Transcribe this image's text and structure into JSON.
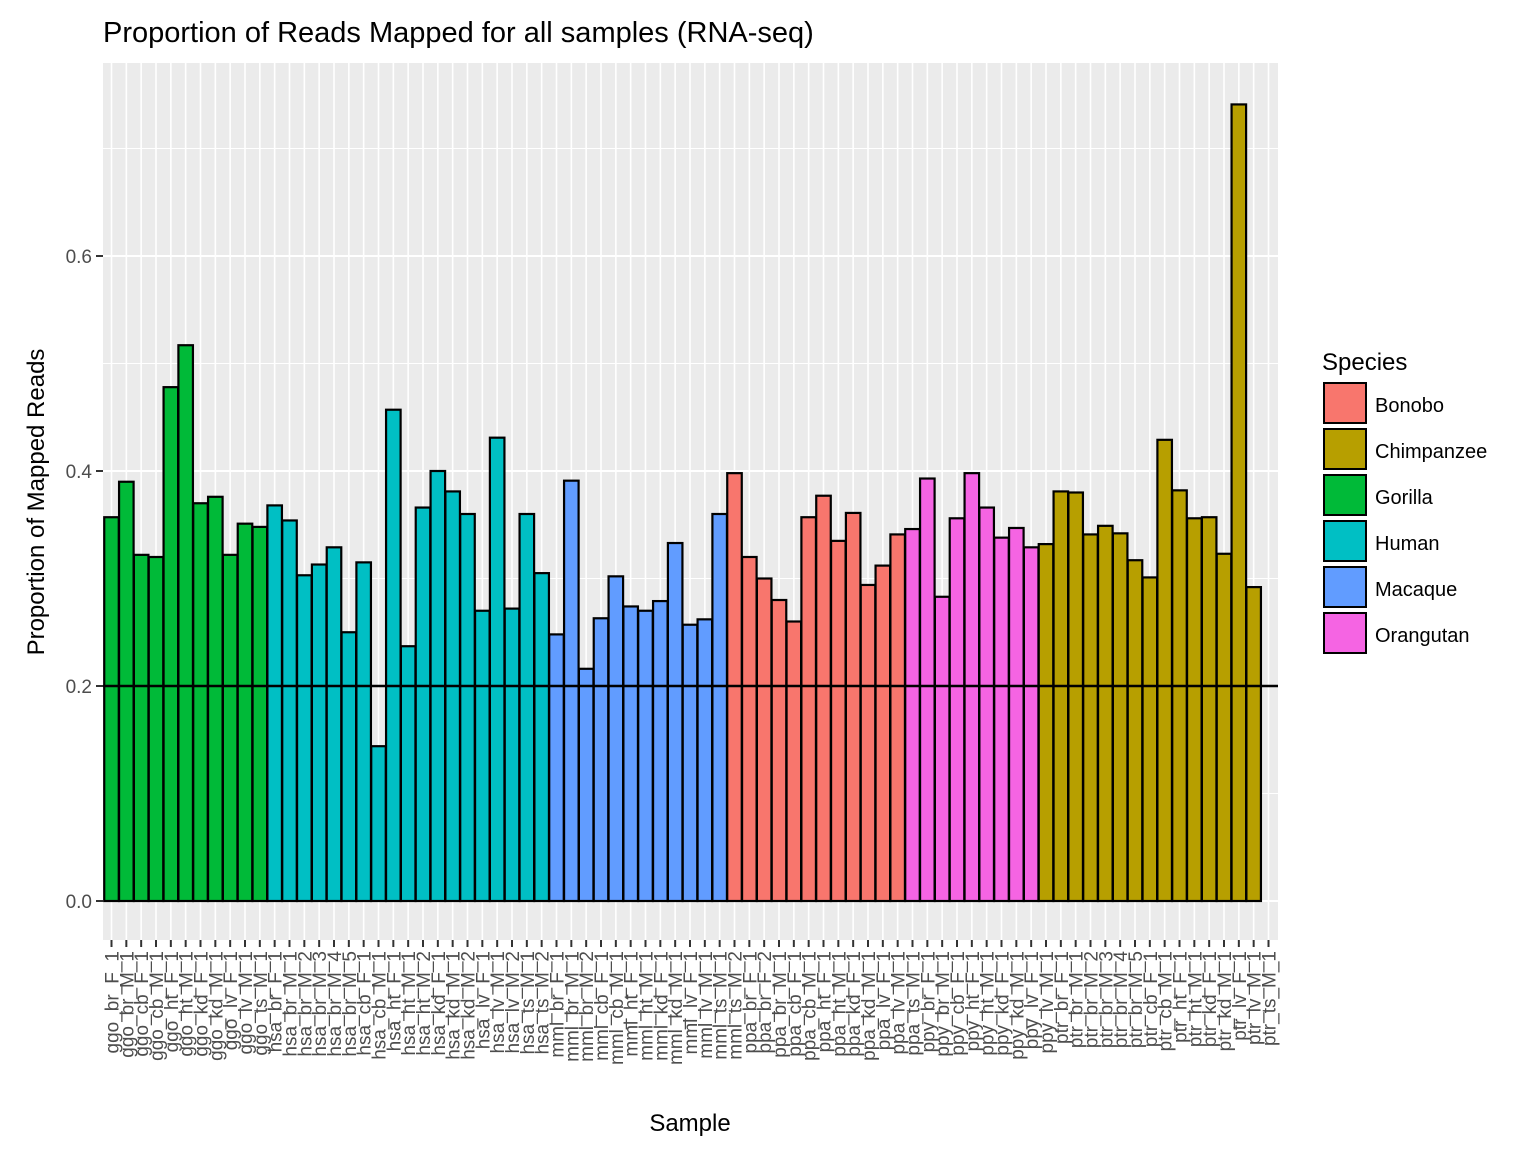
{
  "chart_data": {
    "type": "bar",
    "title": "Proportion of Reads Mapped for all samples (RNA-seq)",
    "xlabel": "Sample",
    "ylabel": "Proportion of Mapped Reads",
    "ylim": [
      -0.05,
      0.76
    ],
    "yticks": [
      0.0,
      0.2,
      0.4,
      0.6
    ],
    "ytick_labels": [
      "0.0",
      "0.2",
      "0.4",
      "0.6"
    ],
    "reference_line": 0.2,
    "grid": true,
    "legend": {
      "title": "Species",
      "placement": "right",
      "entries": [
        "Bonobo",
        "Chimpanzee",
        "Gorilla",
        "Human",
        "Macaque",
        "Orangutan"
      ]
    },
    "species_colors": {
      "Bonobo": "#F8766D",
      "Chimpanzee": "#B79F00",
      "Gorilla": "#00BA38",
      "Human": "#00BFC4",
      "Macaque": "#619CFF",
      "Orangutan": "#F564E3"
    },
    "bars": [
      {
        "sample": "ggo_br_F_1",
        "species": "Gorilla",
        "value": 0.357
      },
      {
        "sample": "ggo_br_M_1",
        "species": "Gorilla",
        "value": 0.39
      },
      {
        "sample": "ggo_cb_F_1",
        "species": "Gorilla",
        "value": 0.322
      },
      {
        "sample": "ggo_cb_M_1",
        "species": "Gorilla",
        "value": 0.32
      },
      {
        "sample": "ggo_ht_F_1",
        "species": "Gorilla",
        "value": 0.478
      },
      {
        "sample": "ggo_ht_M_1",
        "species": "Gorilla",
        "value": 0.517
      },
      {
        "sample": "ggo_kd_F_1",
        "species": "Gorilla",
        "value": 0.37
      },
      {
        "sample": "ggo_kd_M_1",
        "species": "Gorilla",
        "value": 0.376
      },
      {
        "sample": "ggo_lv_F_1",
        "species": "Gorilla",
        "value": 0.322
      },
      {
        "sample": "ggo_lv_M_1",
        "species": "Gorilla",
        "value": 0.351
      },
      {
        "sample": "ggo_ts_M_1",
        "species": "Gorilla",
        "value": 0.348
      },
      {
        "sample": "hsa_br_F_1",
        "species": "Human",
        "value": 0.368
      },
      {
        "sample": "hsa_br_M_1",
        "species": "Human",
        "value": 0.354
      },
      {
        "sample": "hsa_br_M_2",
        "species": "Human",
        "value": 0.303
      },
      {
        "sample": "hsa_br_M_3",
        "species": "Human",
        "value": 0.313
      },
      {
        "sample": "hsa_br_M_4",
        "species": "Human",
        "value": 0.329
      },
      {
        "sample": "hsa_br_M_5",
        "species": "Human",
        "value": 0.25
      },
      {
        "sample": "hsa_cb_F_1",
        "species": "Human",
        "value": 0.315
      },
      {
        "sample": "hsa_cb_M_1",
        "species": "Human",
        "value": 0.144
      },
      {
        "sample": "hsa_ht_F_1",
        "species": "Human",
        "value": 0.457
      },
      {
        "sample": "hsa_ht_M_1",
        "species": "Human",
        "value": 0.237
      },
      {
        "sample": "hsa_ht_M_2",
        "species": "Human",
        "value": 0.366
      },
      {
        "sample": "hsa_kd_F_1",
        "species": "Human",
        "value": 0.4
      },
      {
        "sample": "hsa_kd_M_1",
        "species": "Human",
        "value": 0.381
      },
      {
        "sample": "hsa_kd_M_2",
        "species": "Human",
        "value": 0.36
      },
      {
        "sample": "hsa_lv_F_1",
        "species": "Human",
        "value": 0.27
      },
      {
        "sample": "hsa_lv_M_1",
        "species": "Human",
        "value": 0.431
      },
      {
        "sample": "hsa_lv_M_2",
        "species": "Human",
        "value": 0.272
      },
      {
        "sample": "hsa_ts_M_1",
        "species": "Human",
        "value": 0.36
      },
      {
        "sample": "hsa_ts_M_2",
        "species": "Human",
        "value": 0.305
      },
      {
        "sample": "mml_br_F_1",
        "species": "Macaque",
        "value": 0.248
      },
      {
        "sample": "mml_br_M_1",
        "species": "Macaque",
        "value": 0.391
      },
      {
        "sample": "mml_br_M_2",
        "species": "Macaque",
        "value": 0.216
      },
      {
        "sample": "mml_cb_F_1",
        "species": "Macaque",
        "value": 0.263
      },
      {
        "sample": "mml_cb_M_1",
        "species": "Macaque",
        "value": 0.302
      },
      {
        "sample": "mml_ht_F_1",
        "species": "Macaque",
        "value": 0.274
      },
      {
        "sample": "mml_ht_M_1",
        "species": "Macaque",
        "value": 0.27
      },
      {
        "sample": "mml_kd_F_1",
        "species": "Macaque",
        "value": 0.279
      },
      {
        "sample": "mml_kd_M_1",
        "species": "Macaque",
        "value": 0.333
      },
      {
        "sample": "mml_lv_F_1",
        "species": "Macaque",
        "value": 0.257
      },
      {
        "sample": "mml_lv_M_1",
        "species": "Macaque",
        "value": 0.262
      },
      {
        "sample": "mml_ts_M_1",
        "species": "Macaque",
        "value": 0.36
      },
      {
        "sample": "mml_ts_M_2",
        "species": "Bonobo",
        "value": 0.398
      },
      {
        "sample": "ppa_br_F_1",
        "species": "Bonobo",
        "value": 0.32
      },
      {
        "sample": "ppa_br_F_2",
        "species": "Bonobo",
        "value": 0.3
      },
      {
        "sample": "ppa_br_M_1",
        "species": "Bonobo",
        "value": 0.28
      },
      {
        "sample": "ppa_cb_F_1",
        "species": "Bonobo",
        "value": 0.26
      },
      {
        "sample": "ppa_cb_M_1",
        "species": "Bonobo",
        "value": 0.357
      },
      {
        "sample": "ppa_ht_F_1",
        "species": "Bonobo",
        "value": 0.377
      },
      {
        "sample": "ppa_ht_M_1",
        "species": "Bonobo",
        "value": 0.335
      },
      {
        "sample": "ppa_kd_F_1",
        "species": "Bonobo",
        "value": 0.361
      },
      {
        "sample": "ppa_kd_M_1",
        "species": "Bonobo",
        "value": 0.294
      },
      {
        "sample": "ppa_lv_F_1",
        "species": "Bonobo",
        "value": 0.312
      },
      {
        "sample": "ppa_lv_M_1",
        "species": "Bonobo",
        "value": 0.341
      },
      {
        "sample": "ppa_ts_M_1",
        "species": "Orangutan",
        "value": 0.346
      },
      {
        "sample": "ppy_br_F_1",
        "species": "Orangutan",
        "value": 0.393
      },
      {
        "sample": "ppy_br_M_1",
        "species": "Orangutan",
        "value": 0.283
      },
      {
        "sample": "ppy_cb_F_1",
        "species": "Orangutan",
        "value": 0.356
      },
      {
        "sample": "ppy_ht_F_1",
        "species": "Orangutan",
        "value": 0.398
      },
      {
        "sample": "ppy_ht_M_1",
        "species": "Orangutan",
        "value": 0.366
      },
      {
        "sample": "ppy_kd_F_1",
        "species": "Orangutan",
        "value": 0.338
      },
      {
        "sample": "ppy_kd_M_1",
        "species": "Orangutan",
        "value": 0.347
      },
      {
        "sample": "ppy_lv_F_1",
        "species": "Orangutan",
        "value": 0.329
      },
      {
        "sample": "ppy_lv_M_1",
        "species": "Chimpanzee",
        "value": 0.332
      },
      {
        "sample": "ptr_br_F_1",
        "species": "Chimpanzee",
        "value": 0.381
      },
      {
        "sample": "ptr_br_M_1",
        "species": "Chimpanzee",
        "value": 0.38
      },
      {
        "sample": "ptr_br_M_2",
        "species": "Chimpanzee",
        "value": 0.341
      },
      {
        "sample": "ptr_br_M_3",
        "species": "Chimpanzee",
        "value": 0.349
      },
      {
        "sample": "ptr_br_M_4",
        "species": "Chimpanzee",
        "value": 0.342
      },
      {
        "sample": "ptr_br_M_5",
        "species": "Chimpanzee",
        "value": 0.317
      },
      {
        "sample": "ptr_cb_F_1",
        "species": "Chimpanzee",
        "value": 0.301
      },
      {
        "sample": "ptr_cb_M_1",
        "species": "Chimpanzee",
        "value": 0.429
      },
      {
        "sample": "ptr_ht_F_1",
        "species": "Chimpanzee",
        "value": 0.382
      },
      {
        "sample": "ptr_ht_M_1",
        "species": "Chimpanzee",
        "value": 0.356
      },
      {
        "sample": "ptr_kd_F_1",
        "species": "Chimpanzee",
        "value": 0.357
      },
      {
        "sample": "ptr_kd_M_1",
        "species": "Chimpanzee",
        "value": 0.323
      },
      {
        "sample": "ptr_lv_F_1",
        "species": "Chimpanzee",
        "value": 0.741
      },
      {
        "sample": "ptr_lv_M_1",
        "species": "Chimpanzee",
        "value": 0.292
      },
      {
        "sample": "ptr_ts_M_1",
        "species": "Chimpanzee",
        "value": null
      }
    ]
  }
}
